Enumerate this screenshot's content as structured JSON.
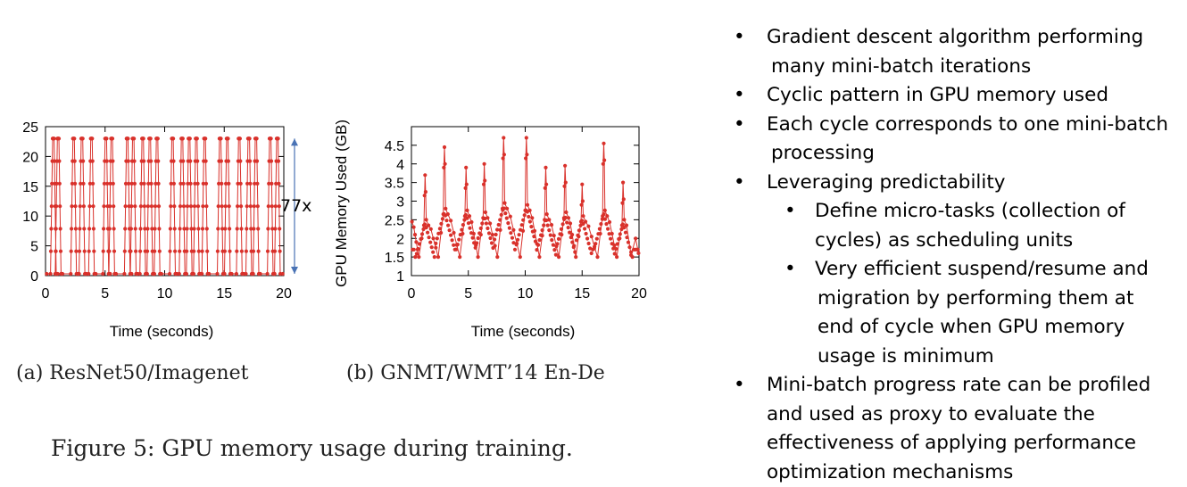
{
  "chart_data": [
    {
      "type": "line",
      "subcaption": "(a)  ResNet50/Imagenet",
      "xlabel": "Time (seconds)",
      "ylabel": "",
      "xlim": [
        0,
        20
      ],
      "ylim": [
        0,
        25
      ],
      "xticks": [
        "0",
        "5",
        "10",
        "15",
        "20"
      ],
      "yticks": [
        "0",
        "5",
        "10",
        "15",
        "20",
        "25"
      ],
      "annotation": "77x",
      "annotation_range": [
        0.3,
        23
      ],
      "series": [
        {
          "color": "#d9312b",
          "marker": "circle",
          "cycle_peaks_time_s": [
            0.6,
            1.0,
            2.3,
            3.0,
            3.8,
            5.0,
            5.5,
            6.8,
            7.3,
            8.1,
            8.7,
            9.3,
            10.6,
            11.4,
            12.0,
            12.6,
            13.3,
            14.6,
            15.2,
            16.2,
            17.0,
            17.6,
            18.8,
            19.4
          ],
          "peak_gb": 23,
          "min_gb": 0.3
        }
      ]
    },
    {
      "type": "line",
      "subcaption": "(b)  GNMT/WMT’14 En-De",
      "xlabel": "Time (seconds)",
      "ylabel": "GPU Memory Used (GB)",
      "xlim": [
        0,
        20
      ],
      "ylim": [
        1,
        5
      ],
      "xticks": [
        "0",
        "5",
        "10",
        "15",
        "20"
      ],
      "yticks": [
        "1",
        "1.5",
        "2",
        "2.5",
        "3",
        "3.5",
        "4",
        "4.5"
      ],
      "series": [
        {
          "color": "#d9312b",
          "marker": "circle",
          "cycles": [
            {
              "peak_t": 1.2,
              "spike_gb": 3.7,
              "peak_gb": 2.5
            },
            {
              "peak_t": 2.9,
              "spike_gb": 4.45,
              "peak_gb": 2.8
            },
            {
              "peak_t": 4.8,
              "spike_gb": 3.9,
              "peak_gb": 2.75
            },
            {
              "peak_t": 6.4,
              "spike_gb": 4.0,
              "peak_gb": 2.7
            },
            {
              "peak_t": 8.1,
              "spike_gb": 4.7,
              "peak_gb": 2.95
            },
            {
              "peak_t": 10.1,
              "spike_gb": 4.7,
              "peak_gb": 2.9
            },
            {
              "peak_t": 11.8,
              "spike_gb": 3.9,
              "peak_gb": 2.65
            },
            {
              "peak_t": 13.5,
              "spike_gb": 3.95,
              "peak_gb": 2.7
            },
            {
              "peak_t": 15.0,
              "spike_gb": 3.45,
              "peak_gb": 2.6
            },
            {
              "peak_t": 16.9,
              "spike_gb": 4.55,
              "peak_gb": 2.75
            },
            {
              "peak_t": 18.6,
              "spike_gb": 3.5,
              "peak_gb": 2.5
            }
          ],
          "start_gb": 2.45,
          "min_gb": 1.5
        }
      ]
    }
  ],
  "figure_caption": "Figure 5: GPU memory usage during training.",
  "bullets": [
    {
      "lines": [
        "Gradient descent algorithm performing",
        "many mini-batch iterations"
      ]
    },
    {
      "lines": [
        "Cyclic pattern in GPU memory used"
      ]
    },
    {
      "lines": [
        "Each cycle corresponds to one mini-batch",
        "processing"
      ]
    },
    {
      "lines": [
        "Leveraging predictability"
      ],
      "sub": [
        {
          "lines": [
            "Define micro-tasks (collection of",
            "cycles) as scheduling units"
          ]
        },
        {
          "lines": [
            "Very efficient suspend/resume and",
            "migration by performing them at",
            "end of cycle when GPU memory",
            "usage is minimum"
          ]
        }
      ]
    },
    {
      "lines": [
        "Mini-batch progress rate can be profiled",
        "and used as proxy to evaluate the",
        "effectiveness of applying performance",
        "optimization mechanisms"
      ]
    }
  ],
  "bullet_glyph": "•",
  "colors": {
    "series": "#d9312b",
    "arrow": "#4a73b5"
  }
}
